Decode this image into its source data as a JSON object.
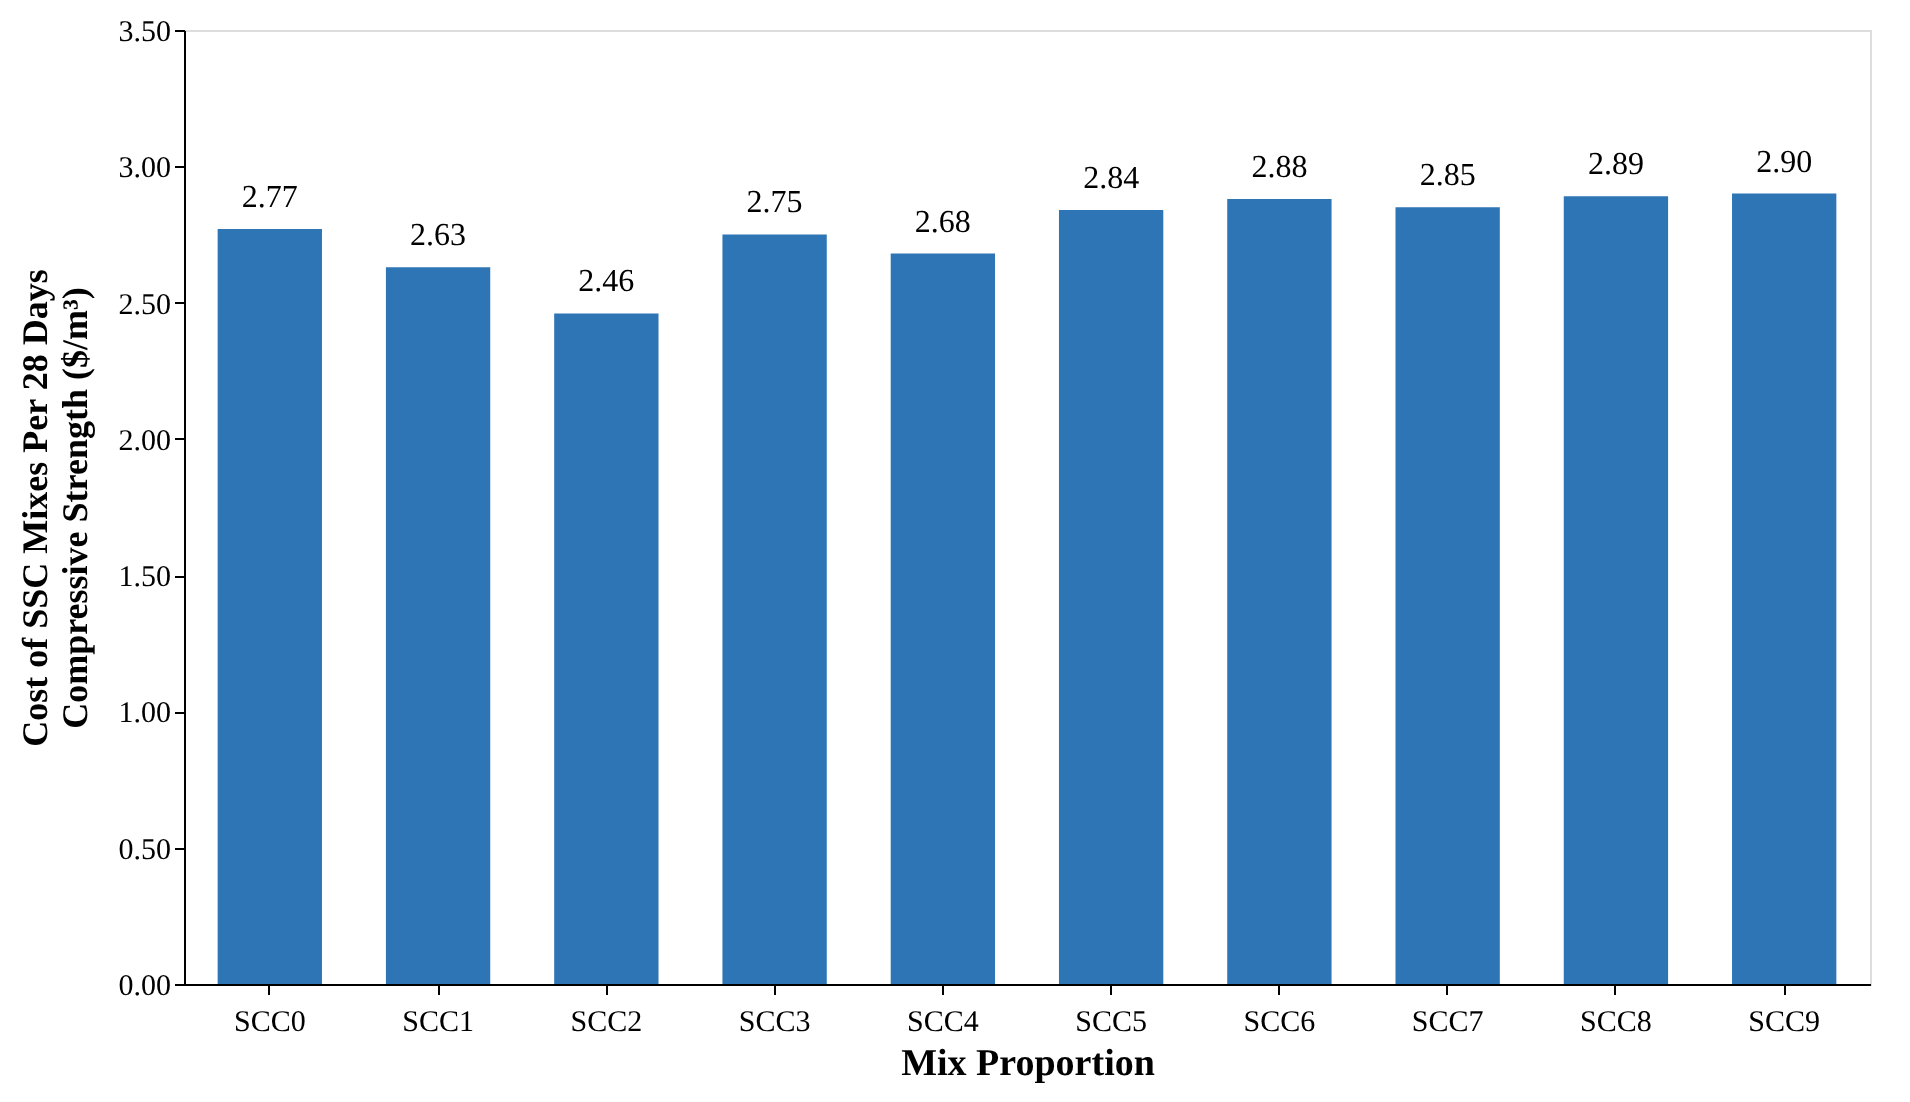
{
  "chart_data": {
    "type": "bar",
    "xlabel": "Mix Proportion",
    "ylabel": "Cost of SSC Mixes Per 28 Days\nCompressive Strength ($/m³)",
    "categories": [
      "SCC0",
      "SCC1",
      "SCC2",
      "SCC3",
      "SCC4",
      "SCC5",
      "SCC6",
      "SCC7",
      "SCC8",
      "SCC9"
    ],
    "values": [
      2.77,
      2.63,
      2.46,
      2.75,
      2.68,
      2.84,
      2.88,
      2.85,
      2.89,
      2.9
    ],
    "value_labels": [
      "2.77",
      "2.63",
      "2.46",
      "2.75",
      "2.68",
      "2.84",
      "2.88",
      "2.85",
      "2.89",
      "2.90"
    ],
    "color": "#2e75b6",
    "ylim": [
      0,
      3.5
    ],
    "yticks": [
      {
        "value": 0,
        "label": "0.00"
      },
      {
        "value": 0.5,
        "label": "0.50"
      },
      {
        "value": 1,
        "label": "1.00"
      },
      {
        "value": 1.5,
        "label": "1.50"
      },
      {
        "value": 2,
        "label": "2.00"
      },
      {
        "value": 2.5,
        "label": "2.50"
      },
      {
        "value": 3,
        "label": "3.00"
      },
      {
        "value": 3.5,
        "label": "3.50"
      }
    ],
    "grid": false
  }
}
